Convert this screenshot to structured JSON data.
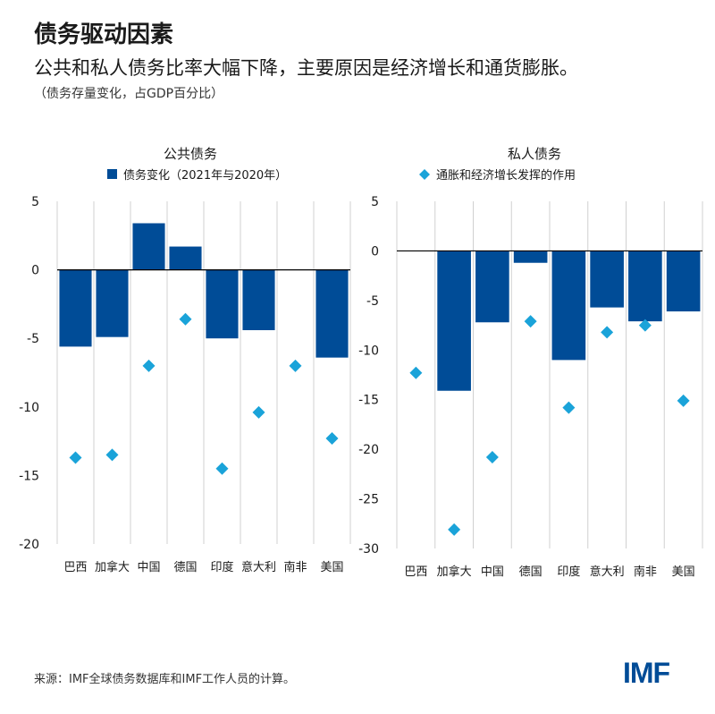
{
  "header": {
    "title": "债务驱动因素",
    "subtitle": "公共和私人债务比率大幅下降，主要原因是经济增长和通货膨胀。",
    "note": "（债务存量变化，占GDP百分比）"
  },
  "footer": {
    "source": "来源：IMF全球债务数据库和IMF工作人员的计算。",
    "logo": "IMF"
  },
  "colors": {
    "bar": "#004c97",
    "marker": "#1aa3d9",
    "grid": "#d0d0d0",
    "axis": "#000000"
  },
  "chart_data": [
    {
      "type": "bar",
      "title": "公共债务",
      "legend": "债务变化（2021年与2020年）",
      "categories": [
        "巴西",
        "加拿大",
        "中国",
        "德国",
        "印度",
        "意大利",
        "南非",
        "美国"
      ],
      "series": [
        {
          "name": "债务变化（2021年与2020年）",
          "type": "bar",
          "values": [
            -5.6,
            -4.9,
            3.4,
            1.7,
            -5.0,
            -4.4,
            0,
            -6.4
          ]
        },
        {
          "type": "scatter",
          "values": [
            -13.7,
            -13.5,
            -7.0,
            -3.6,
            -14.5,
            -10.4,
            -7.0,
            -12.3
          ]
        }
      ],
      "ylim": [
        -20,
        5
      ],
      "yticks": [
        5,
        0,
        -5,
        -10,
        -15,
        -20
      ]
    },
    {
      "type": "bar",
      "title": "私人债务",
      "legend": "通胀和经济增长发挥的作用",
      "categories": [
        "巴西",
        "加拿大",
        "中国",
        "德国",
        "印度",
        "意大利",
        "南非",
        "美国"
      ],
      "series": [
        {
          "type": "bar",
          "values": [
            0,
            -14.1,
            -7.2,
            -1.2,
            -11.0,
            -5.7,
            -7.1,
            -6.1
          ]
        },
        {
          "name": "通胀和经济增长发挥的作用",
          "type": "scatter",
          "values": [
            -12.3,
            -28.1,
            -20.8,
            -7.1,
            -15.8,
            -8.2,
            -7.5,
            -15.1
          ]
        }
      ],
      "ylim": [
        -30,
        5
      ],
      "yticks": [
        5,
        0,
        -5,
        -10,
        -15,
        -20,
        -25,
        -30
      ]
    }
  ]
}
